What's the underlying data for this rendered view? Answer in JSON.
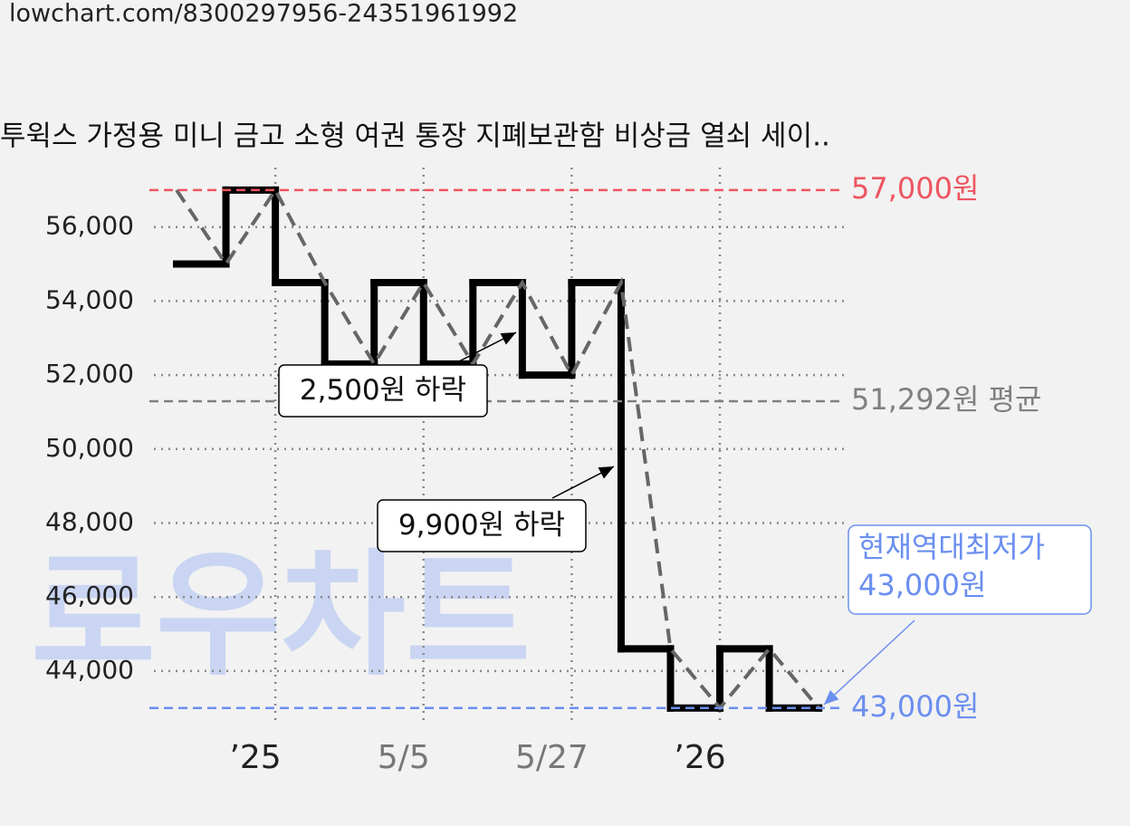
{
  "url": "lowchart.com/8300297956-24351961992",
  "watermark": "로우차트",
  "chart_data": {
    "type": "step",
    "title": "투윅스 가정용 미니 금고 소형 여권 통장 지폐보관함 비상금 열쇠 세이..",
    "categories": [
      null,
      null,
      "’25",
      null,
      null,
      "5/5",
      null,
      null,
      "5/27",
      null,
      null,
      "’26",
      null,
      null
    ],
    "category_colors": [
      null,
      null,
      "#222222",
      null,
      null,
      "#777777",
      null,
      null,
      "#777777",
      null,
      null,
      "#222222",
      null,
      null
    ],
    "series": [
      {
        "color": "#000000",
        "style": "step",
        "values": [
          55000,
          57000,
          54500,
          52300,
          54500,
          52300,
          54500,
          52000,
          54500,
          44600,
          43000,
          44600,
          43000,
          43000
        ]
      },
      {
        "color": "#666666",
        "style": "dashed",
        "values": [
          57000,
          55000,
          57000,
          54500,
          52300,
          54500,
          52300,
          54500,
          52000,
          54500,
          44600,
          43000,
          44600,
          43000
        ]
      }
    ],
    "ylim": [
      42000,
      58000
    ],
    "yticks": [
      {
        "value": 44000,
        "label": "44,000"
      },
      {
        "value": 46000,
        "label": "46,000"
      },
      {
        "value": 48000,
        "label": "48,000"
      },
      {
        "value": 50000,
        "label": "50,000"
      },
      {
        "value": 52000,
        "label": "52,000"
      },
      {
        "value": 54000,
        "label": "54,000"
      },
      {
        "value": 56000,
        "label": "56,000"
      }
    ],
    "grid": true,
    "reference_lines": [
      {
        "value": 57000,
        "label": "57,000원",
        "color": "#ee5560"
      },
      {
        "value": 51292,
        "label": "51,292원 평균",
        "color": "#808080"
      },
      {
        "value": 43000,
        "label": "43,000원",
        "color": "#6b8ff0"
      }
    ],
    "annotations": [
      "2,500원 하락",
      "9,900원 하락"
    ],
    "callout": [
      "현재역대최저가",
      "43,000원"
    ]
  }
}
